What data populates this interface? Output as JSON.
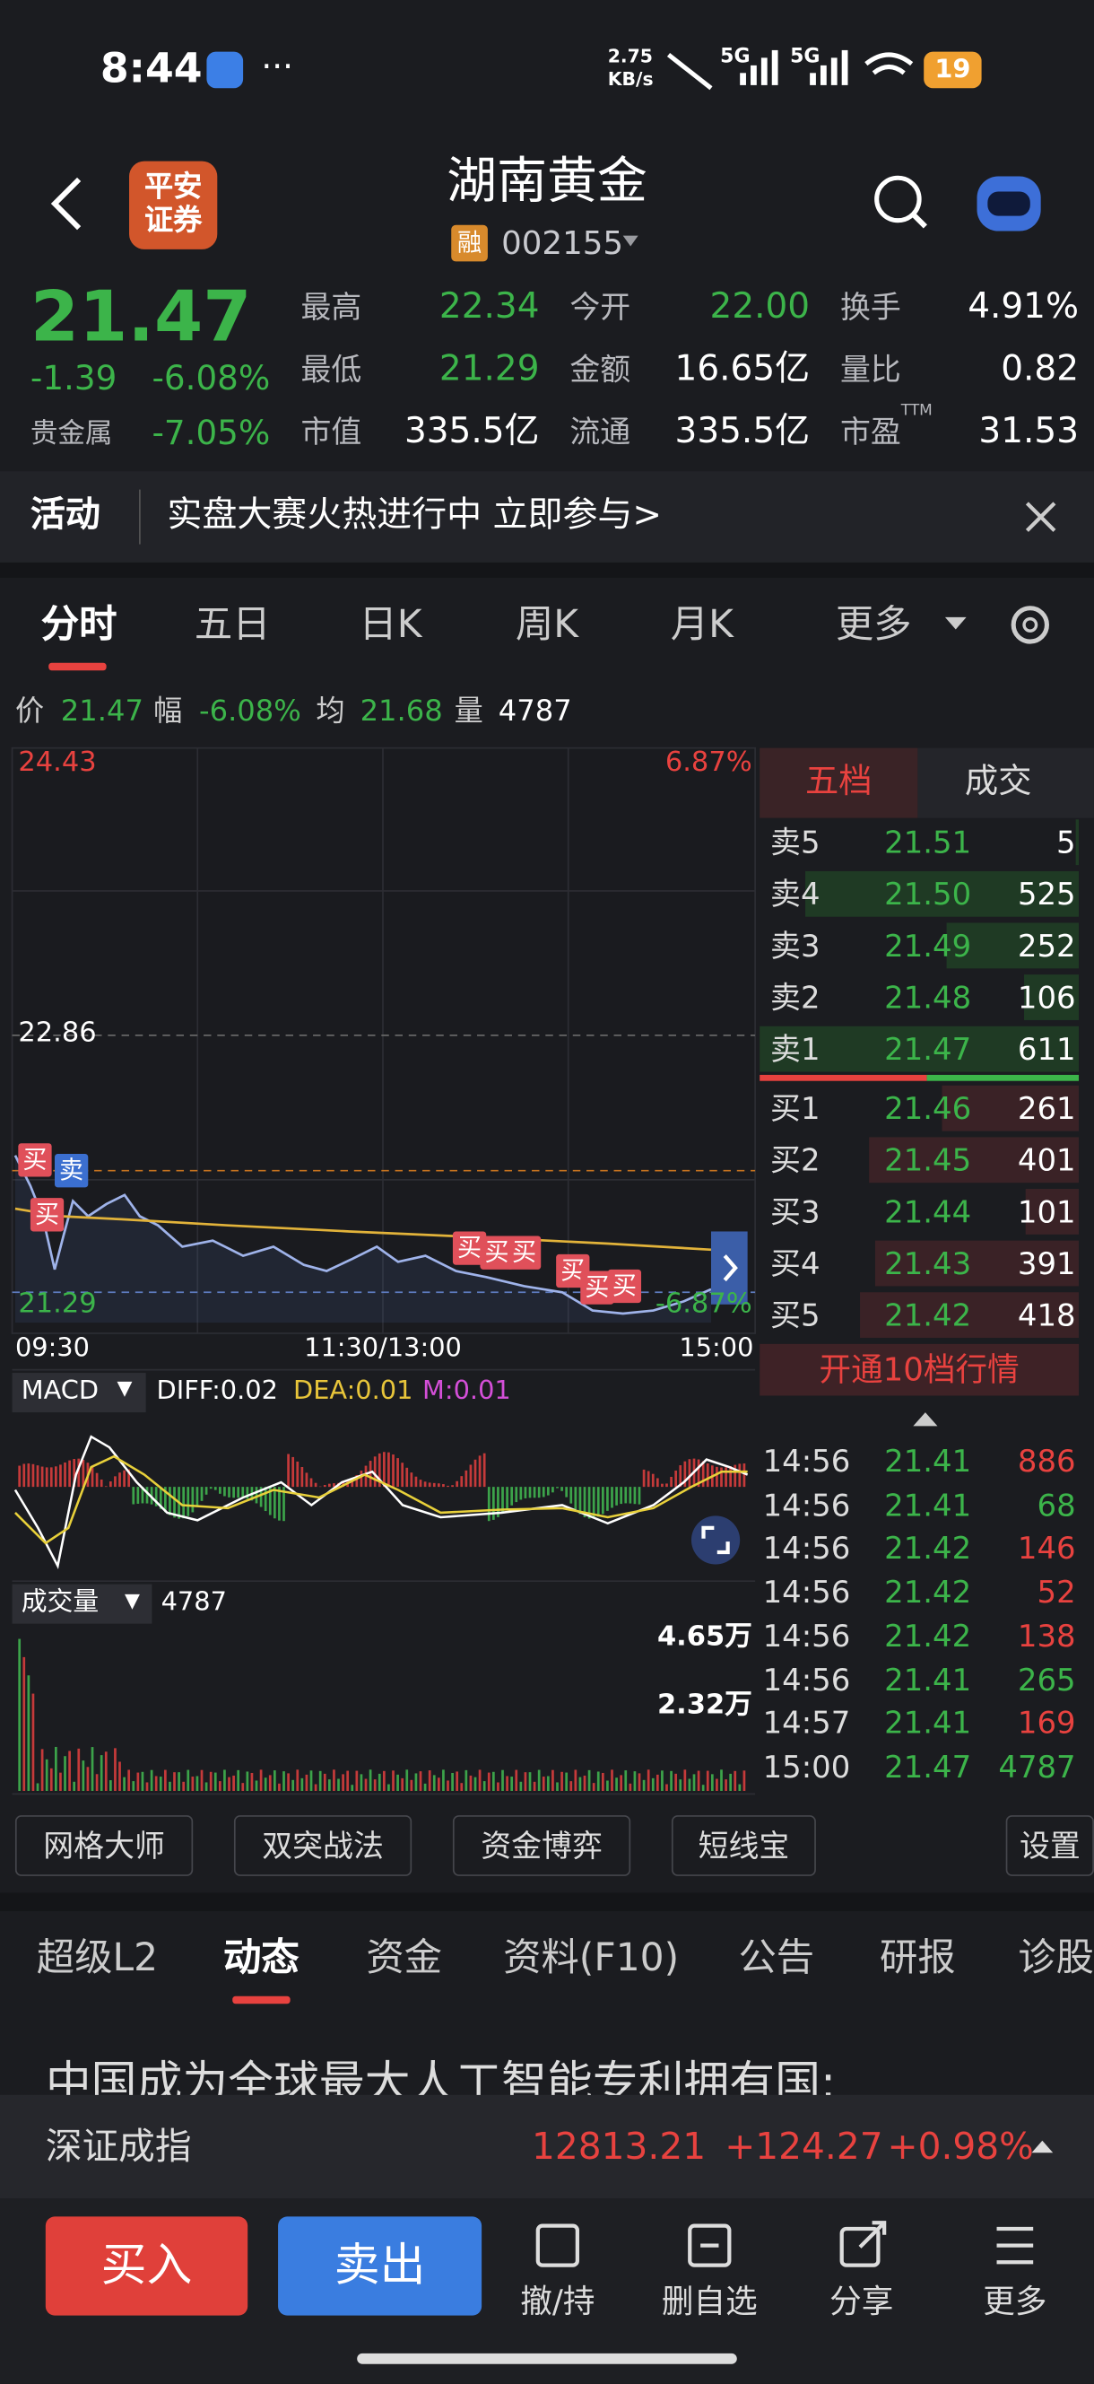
{
  "status_bar": {
    "time": "8:44",
    "net_speed": "2.75",
    "net_unit": "KB/s",
    "signal_1": "5G",
    "signal_2": "5G",
    "battery": "19"
  },
  "header": {
    "logo_top": "平安",
    "logo_bottom": "证券",
    "title": "湖南黄金",
    "badge": "融",
    "code": "002155"
  },
  "quote": {
    "price": "21.47",
    "change": "-1.39",
    "change_pct": "-6.08%",
    "sector": "贵金属",
    "sector_pct": "-7.05%",
    "stats": [
      {
        "label": "最高",
        "value": "22.34",
        "color": "#3cb44a"
      },
      {
        "label": "今开",
        "value": "22.00",
        "color": "#3cb44a"
      },
      {
        "label": "换手",
        "value": "4.91%",
        "color": "#ffffff"
      },
      {
        "label": "最低",
        "value": "21.29",
        "color": "#3cb44a"
      },
      {
        "label": "金额",
        "value": "16.65亿",
        "color": "#ffffff"
      },
      {
        "label": "量比",
        "value": "0.82",
        "color": "#ffffff"
      },
      {
        "label": "市值",
        "value": "335.5亿",
        "color": "#ffffff"
      },
      {
        "label": "流通",
        "value": "335.5亿",
        "color": "#ffffff"
      },
      {
        "label": "市盈",
        "sup": "TTM",
        "value": "31.53",
        "color": "#ffffff"
      }
    ]
  },
  "banner": {
    "label": "活动",
    "text": "实盘大赛火热进行中 立即参与>"
  },
  "tabs": [
    "分时",
    "五日",
    "日K",
    "周K",
    "月K",
    "更多"
  ],
  "info_line": [
    "价",
    "21.47",
    "幅",
    "-6.08%",
    "均",
    "21.68",
    "量",
    "4787"
  ],
  "chart": {
    "top": "24.43",
    "top_pct": "6.87%",
    "mid": "22.86",
    "low": "21.29",
    "low_pct": "-6.87%",
    "x_labels": [
      "09:30",
      "11:30/13:00",
      "15:00"
    ],
    "buy_mark": "买",
    "sell_mark": "卖"
  },
  "order_book": {
    "tabs": [
      "五档",
      "成交"
    ],
    "asks": [
      {
        "name": "卖5",
        "price": "21.51",
        "vol": 5
      },
      {
        "name": "卖4",
        "price": "21.50",
        "vol": 525
      },
      {
        "name": "卖3",
        "price": "21.49",
        "vol": 252
      },
      {
        "name": "卖2",
        "price": "21.48",
        "vol": 106
      },
      {
        "name": "卖1",
        "price": "21.47",
        "vol": 611
      }
    ],
    "bids": [
      {
        "name": "买1",
        "price": "21.46",
        "vol": 261
      },
      {
        "name": "买2",
        "price": "21.45",
        "vol": 401
      },
      {
        "name": "买3",
        "price": "21.44",
        "vol": 101
      },
      {
        "name": "买4",
        "price": "21.43",
        "vol": 391
      },
      {
        "name": "买5",
        "price": "21.42",
        "vol": 418
      }
    ],
    "upgrade": "开通10档行情"
  },
  "trades": [
    {
      "time": "14:56",
      "price": "21.41",
      "vol": "886",
      "color": "#e8423f"
    },
    {
      "time": "14:56",
      "price": "21.41",
      "vol": "68",
      "color": "#3cb44a"
    },
    {
      "time": "14:56",
      "price": "21.42",
      "vol": "146",
      "color": "#e8423f"
    },
    {
      "time": "14:56",
      "price": "21.42",
      "vol": "52",
      "color": "#e8423f"
    },
    {
      "time": "14:56",
      "price": "21.42",
      "vol": "138",
      "color": "#e8423f"
    },
    {
      "time": "14:56",
      "price": "21.41",
      "vol": "265",
      "color": "#3cb44a"
    },
    {
      "time": "14:57",
      "price": "21.41",
      "vol": "169",
      "color": "#e8423f"
    },
    {
      "time": "15:00",
      "price": "21.47",
      "vol": "4787",
      "color": "#3cb44a"
    }
  ],
  "macd": {
    "label": "MACD",
    "diff": "DIFF:0.02",
    "dea": "DEA:0.01",
    "m": "M:0.01"
  },
  "volume": {
    "label": "成交量",
    "value": "4787",
    "high": "4.65万",
    "mid": "2.32万"
  },
  "tools": [
    "网格大师",
    "双突战法",
    "资金博弈",
    "短线宝",
    "设置"
  ],
  "bottom_tabs": [
    "超级L2",
    "动态",
    "资金",
    "资料(F10)",
    "公告",
    "研报",
    "诊股"
  ],
  "news": "中国成为全球最大人工智能专利拥有国:",
  "index_bar": {
    "name": "深证成指",
    "value": "12813.21",
    "change": "+124.27",
    "pct": "+0.98%"
  },
  "actions": {
    "buy": "买入",
    "sell": "卖出",
    "items": [
      "撤/持",
      "删自选",
      "分享",
      "更多"
    ]
  }
}
